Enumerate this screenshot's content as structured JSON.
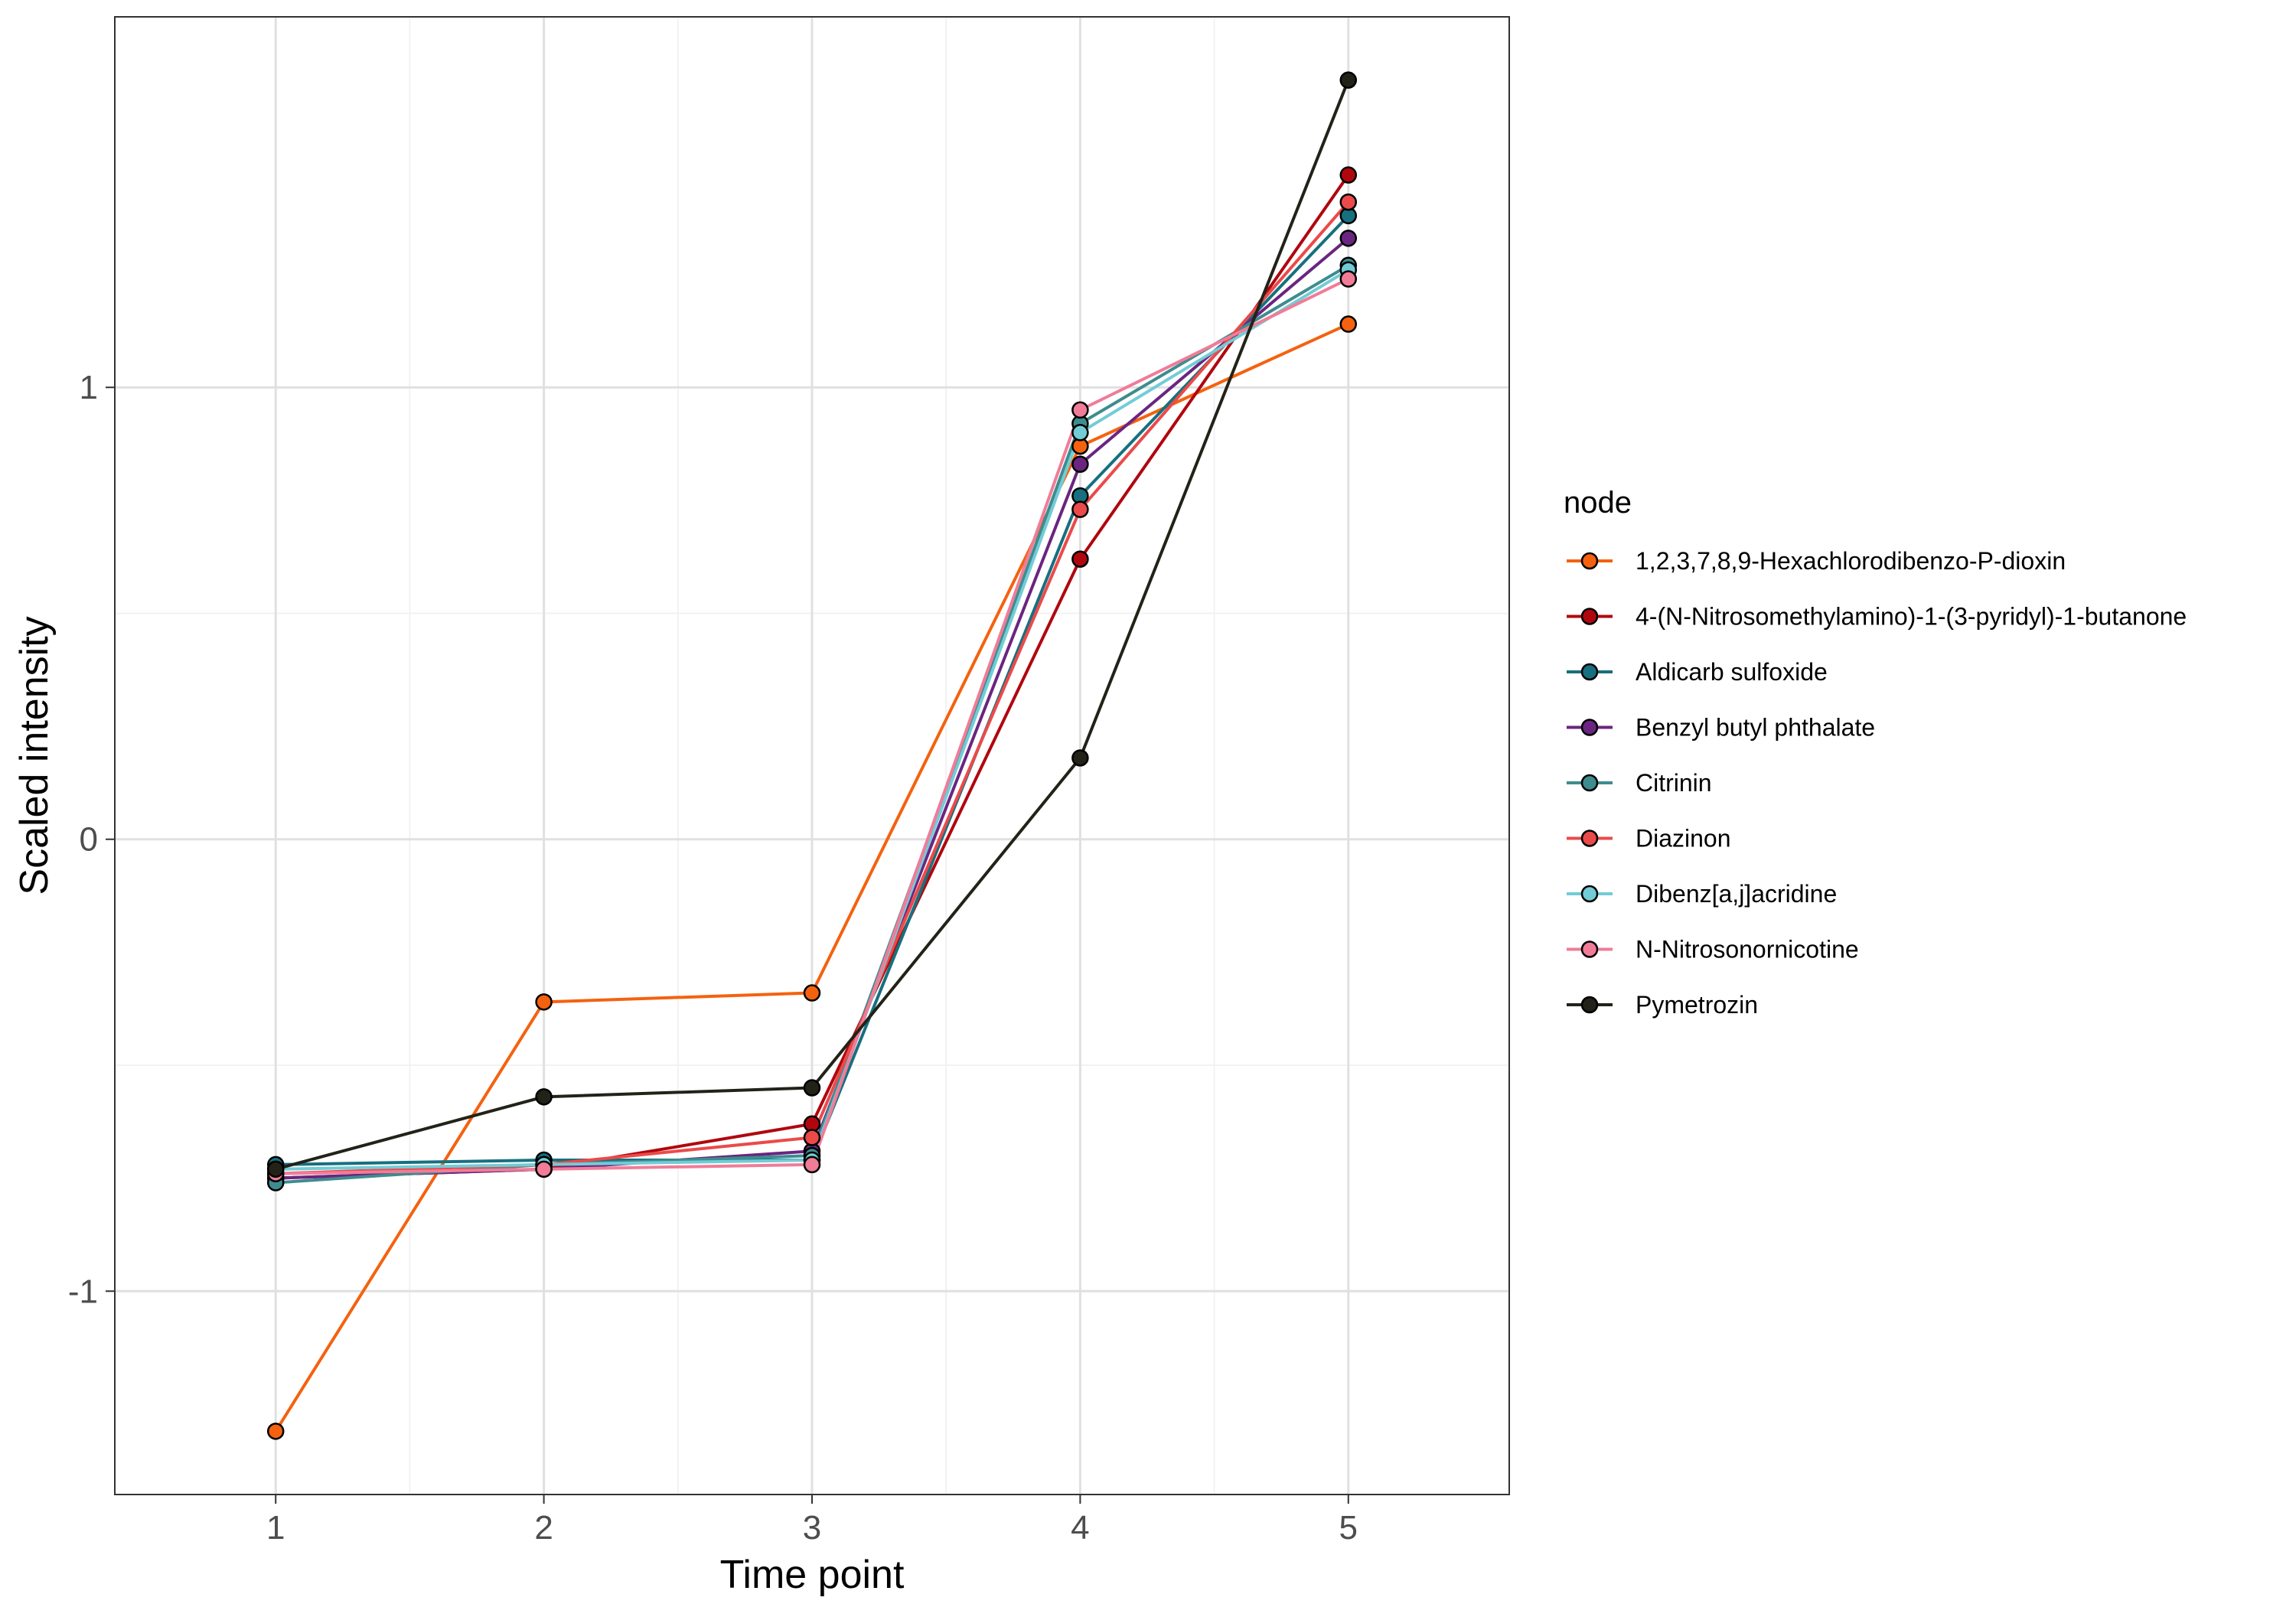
{
  "chart_data": {
    "type": "line",
    "xlabel": "Time point",
    "ylabel": "Scaled intensity",
    "x": [
      1,
      2,
      3,
      4,
      5
    ],
    "x_ticks": [
      "1",
      "2",
      "3",
      "4",
      "5"
    ],
    "y_ticks": [
      "-1",
      "0",
      "1"
    ],
    "xlim": [
      0.4,
      5.6
    ],
    "ylim": [
      -1.45,
      1.82
    ],
    "grid": true,
    "legend_title": "node",
    "legend_position": "right",
    "series": [
      {
        "name": "1,2,3,7,8,9-Hexachlorodibenzo-P-dioxin",
        "color": "#F4620F",
        "values": [
          -1.31,
          -0.36,
          -0.34,
          0.87,
          1.14
        ]
      },
      {
        "name": "4-(N-Nitrosomethylamino)-1-(3-pyridyl)-1-butanone",
        "color": "#B0070F",
        "values": [
          -0.75,
          -0.73,
          -0.63,
          0.62,
          1.47
        ]
      },
      {
        "name": "Aldicarb sulfoxide",
        "color": "#16707F",
        "values": [
          -0.72,
          -0.71,
          -0.71,
          0.76,
          1.38
        ]
      },
      {
        "name": "Benzyl butyl phthalate",
        "color": "#6A2580",
        "values": [
          -0.75,
          -0.73,
          -0.69,
          0.83,
          1.33
        ]
      },
      {
        "name": "Citrinin",
        "color": "#3E8C8E",
        "values": [
          -0.76,
          -0.72,
          -0.7,
          0.92,
          1.27
        ]
      },
      {
        "name": "Diazinon",
        "color": "#EB4A4A",
        "values": [
          -0.74,
          -0.72,
          -0.66,
          0.73,
          1.41
        ]
      },
      {
        "name": "Dibenz[a,j]acridine",
        "color": "#72CCD6",
        "values": [
          -0.73,
          -0.72,
          -0.71,
          0.9,
          1.26
        ]
      },
      {
        "name": "N-Nitrosonornicotine",
        "color": "#F07C98",
        "values": [
          -0.74,
          -0.73,
          -0.72,
          0.95,
          1.24
        ]
      },
      {
        "name": "Pymetrozin",
        "color": "#222218",
        "values": [
          -0.73,
          -0.57,
          -0.55,
          0.18,
          1.68
        ]
      }
    ]
  }
}
